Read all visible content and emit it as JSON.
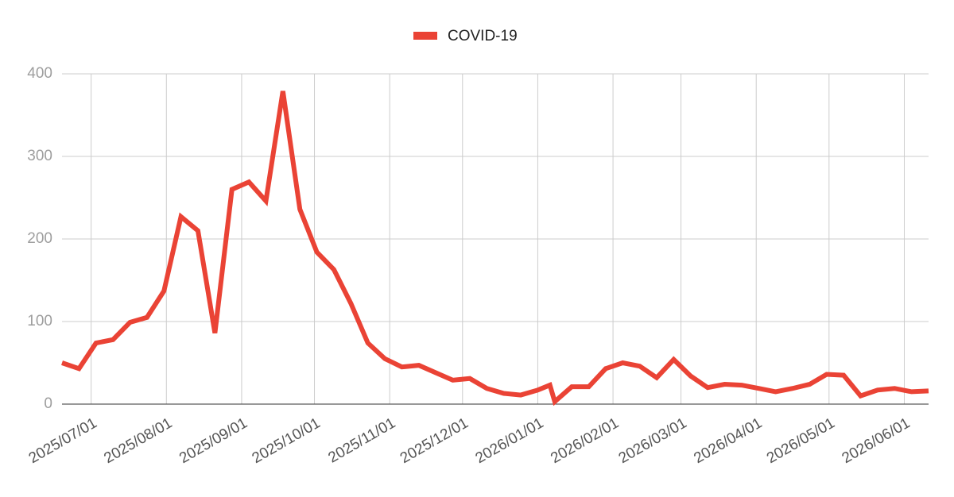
{
  "chart_data": {
    "type": "line",
    "x": [
      "2025/06/19",
      "2025/06/26",
      "2025/07/03",
      "2025/07/10",
      "2025/07/17",
      "2025/07/24",
      "2025/07/31",
      "2025/08/07",
      "2025/08/14",
      "2025/08/21",
      "2025/08/28",
      "2025/09/04",
      "2025/09/11",
      "2025/09/18",
      "2025/09/25",
      "2025/10/02",
      "2025/10/09",
      "2025/10/16",
      "2025/10/23",
      "2025/10/30",
      "2025/11/06",
      "2025/11/13",
      "2025/11/20",
      "2025/11/27",
      "2025/12/04",
      "2025/12/11",
      "2025/12/18",
      "2025/12/25",
      "2026/01/01",
      "2026/01/06",
      "2026/01/08",
      "2026/01/15",
      "2026/01/22",
      "2026/01/29",
      "2026/02/05",
      "2026/02/12",
      "2026/02/19",
      "2026/02/26",
      "2026/03/05",
      "2026/03/12",
      "2026/03/19",
      "2026/03/26",
      "2026/04/02",
      "2026/04/09",
      "2026/04/16",
      "2026/04/23",
      "2026/04/30",
      "2026/05/07",
      "2026/05/14",
      "2026/05/21",
      "2026/05/28",
      "2026/06/04",
      "2026/06/11"
    ],
    "series": [
      {
        "name": "COVID-19",
        "color": "#ea4335",
        "values": [
          50,
          43,
          74,
          78,
          99,
          105,
          137,
          227,
          210,
          86,
          260,
          269,
          246,
          379,
          236,
          184,
          163,
          122,
          74,
          55,
          45,
          47,
          38,
          29,
          31,
          19,
          13,
          11,
          17,
          23,
          3,
          21,
          21,
          43,
          50,
          46,
          32,
          54,
          34,
          20,
          24,
          23,
          19,
          15,
          19,
          24,
          36,
          35,
          10,
          17,
          19,
          15,
          16
        ]
      }
    ],
    "xlim": [
      "2025/06/19",
      "2026/06/11"
    ],
    "xticks": [
      "2025/07/01",
      "2025/08/01",
      "2025/09/01",
      "2025/10/01",
      "2025/11/01",
      "2025/12/01",
      "2026/01/01",
      "2026/02/01",
      "2026/03/01",
      "2026/04/01",
      "2026/05/01",
      "2026/06/01"
    ],
    "ylim": [
      0,
      400
    ],
    "yticks": [
      0,
      100,
      200,
      300,
      400
    ],
    "grid": true,
    "legend": "top"
  }
}
